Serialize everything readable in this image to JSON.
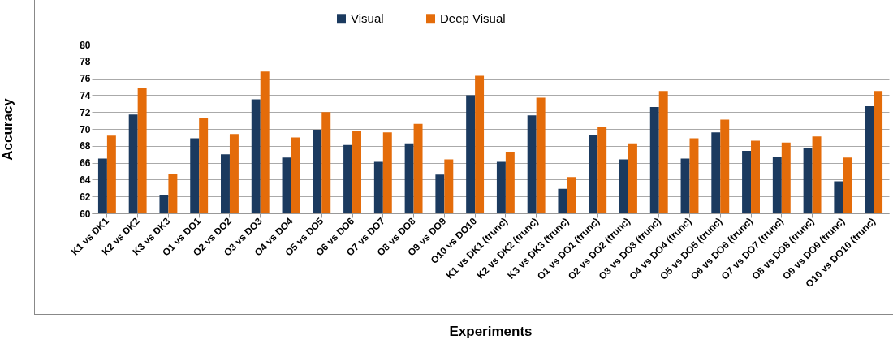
{
  "chart_data": {
    "type": "bar",
    "xlabel": "Experiments",
    "ylabel": "Accuracy",
    "categories": [
      "K1 vs DK1",
      "K2 vs DK2",
      "K3 vs DK3",
      "O1 vs DO1",
      "O2 vs DO2",
      "O3 vs DO3",
      "O4 vs DO4",
      "O5 vs DO5",
      "O6 vs DO6",
      "O7 vs DO7",
      "O8 vs DO8",
      "O9 vs DO9",
      "O10 vs DO10",
      "K1 vs DK1 (trunc)",
      "K2 vs DK2 (trunc)",
      "K3 vs DK3 (trunc)",
      "O1 vs DO1 (trunc)",
      "O2 vs DO2 (trunc)",
      "O3 vs DO3 (trunc)",
      "O4 vs DO4 (trunc)",
      "O5 vs DO5 (trunc)",
      "O6 vs DO6 (trunc)",
      "O7 vs DO7 (trunc)",
      "O8 vs DO8 (trunc)",
      "O9 vs DO9 (trunc)",
      "O10 vs DO10 (trunc)"
    ],
    "series": [
      {
        "name": "Visual",
        "color": "#1b3a5f",
        "values": [
          66.5,
          71.7,
          62.2,
          68.9,
          67.0,
          73.5,
          66.6,
          69.9,
          68.1,
          66.1,
          68.3,
          64.6,
          74.0,
          66.1,
          71.6,
          62.9,
          69.3,
          66.4,
          72.6,
          66.5,
          69.6,
          67.4,
          66.7,
          67.8,
          63.8,
          72.7
        ]
      },
      {
        "name": "Deep Visual",
        "color": "#e46c0a",
        "values": [
          69.2,
          74.9,
          64.7,
          71.3,
          69.4,
          76.8,
          69.0,
          72.0,
          69.8,
          69.6,
          70.6,
          66.4,
          76.3,
          67.3,
          73.7,
          64.3,
          70.3,
          68.3,
          74.5,
          68.9,
          71.1,
          68.6,
          68.4,
          69.1,
          66.6,
          74.5
        ]
      }
    ],
    "ylim": [
      60,
      80
    ],
    "yticks": [
      60,
      62,
      64,
      66,
      68,
      70,
      72,
      74,
      76,
      78,
      80
    ],
    "grid": "y",
    "legend": "top"
  }
}
